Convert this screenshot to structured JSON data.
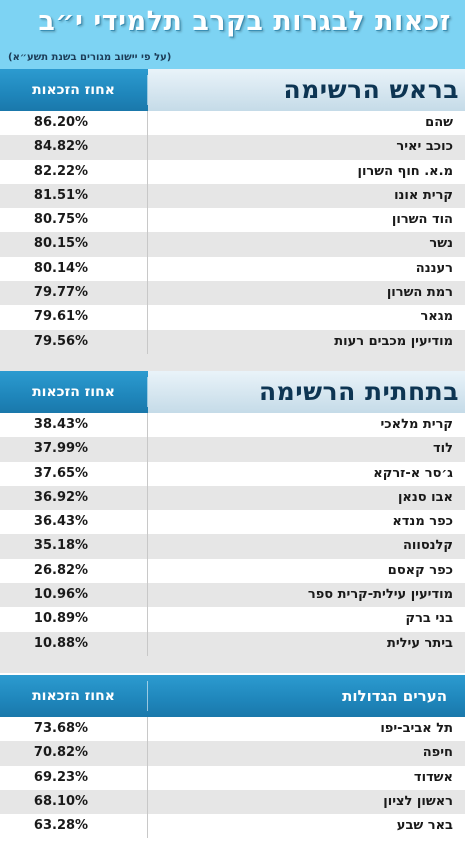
{
  "title": "זכאות לבגרות בקרב תלמידי י״ב",
  "subtitle": "(על פי יישוב מגורים בשנת תשע״א)",
  "colors": {
    "header_bg": "#7dd3f3",
    "section_blue": "#1f86bb",
    "row_alt": "#e6e6e6"
  },
  "sections": [
    {
      "name": "בראש הרשימה",
      "column_label": "אחוז הזכאות",
      "rows": [
        {
          "city": "שהם",
          "value": "86.20%"
        },
        {
          "city": "כוכב יאיר",
          "value": "84.82%"
        },
        {
          "city": "מ.א. חוף השרון",
          "value": "82.22%"
        },
        {
          "city": "קרית אונו",
          "value": "81.51%"
        },
        {
          "city": "הוד השרון",
          "value": "80.75%"
        },
        {
          "city": "נשר",
          "value": "80.15%"
        },
        {
          "city": "רעננה",
          "value": "80.14%"
        },
        {
          "city": "רמת השרון",
          "value": "79.77%"
        },
        {
          "city": "מגאר",
          "value": "79.61%"
        },
        {
          "city": "מודיעין מכבים רעות",
          "value": "79.56%"
        }
      ]
    },
    {
      "name": "בתחתית הרשימה",
      "column_label": "אחוז הזכאות",
      "rows": [
        {
          "city": "קרית מלאכי",
          "value": "38.43%"
        },
        {
          "city": "לוד",
          "value": "37.99%"
        },
        {
          "city": "ג׳סר א-זרקא",
          "value": "37.65%"
        },
        {
          "city": "אבו סנאן",
          "value": "36.92%"
        },
        {
          "city": "כפר מנדא",
          "value": "36.43%"
        },
        {
          "city": "קלנסווה",
          "value": "35.18%"
        },
        {
          "city": "כפר קאסם",
          "value": "26.82%"
        },
        {
          "city": "מודיעין עילית-קרית ספר",
          "value": "10.96%"
        },
        {
          "city": "בני ברק",
          "value": "10.89%"
        },
        {
          "city": "ביתר עילית",
          "value": "10.88%"
        }
      ]
    },
    {
      "name": "הערים הגדולות",
      "column_label": "אחוז הזכאות",
      "rows": [
        {
          "city": "תל אביב-יפו",
          "value": "73.68%"
        },
        {
          "city": "חיפה",
          "value": "70.82%"
        },
        {
          "city": "אשדוד",
          "value": "69.23%"
        },
        {
          "city": "ראשון לציון",
          "value": "68.10%"
        },
        {
          "city": "באר שבע",
          "value": "63.28%"
        }
      ]
    }
  ]
}
